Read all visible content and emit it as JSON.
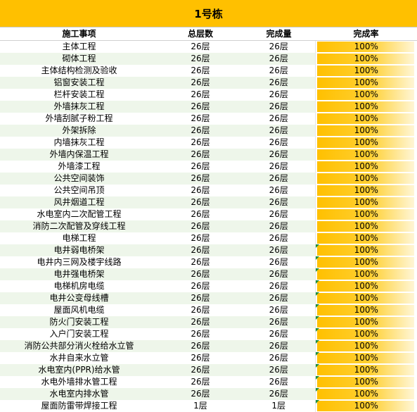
{
  "title": "1号栋",
  "headers": [
    "施工事项",
    "总层数",
    "完成量",
    "完成率"
  ],
  "rows": [
    {
      "item": "主体工程",
      "total": "26层",
      "done": "26层",
      "rate": "100%",
      "flag": false
    },
    {
      "item": "砌体工程",
      "total": "26层",
      "done": "26层",
      "rate": "100%",
      "flag": false
    },
    {
      "item": "主体结构检测及验收",
      "total": "26层",
      "done": "26层",
      "rate": "100%",
      "flag": false
    },
    {
      "item": "铝窗安装工程",
      "total": "26层",
      "done": "26层",
      "rate": "100%",
      "flag": false
    },
    {
      "item": "栏杆安装工程",
      "total": "26层",
      "done": "26层",
      "rate": "100%",
      "flag": false
    },
    {
      "item": "外墙抹灰工程",
      "total": "26层",
      "done": "26层",
      "rate": "100%",
      "flag": false
    },
    {
      "item": "外墙刮腻子粉工程",
      "total": "26层",
      "done": "26层",
      "rate": "100%",
      "flag": false
    },
    {
      "item": "外架拆除",
      "total": "26层",
      "done": "26层",
      "rate": "100%",
      "flag": false
    },
    {
      "item": "内墙抹灰工程",
      "total": "26层",
      "done": "26层",
      "rate": "100%",
      "flag": false
    },
    {
      "item": "外墙内保温工程",
      "total": "26层",
      "done": "26层",
      "rate": "100%",
      "flag": false
    },
    {
      "item": "外墙漆工程",
      "total": "26层",
      "done": "26层",
      "rate": "100%",
      "flag": false
    },
    {
      "item": "公共空间装饰",
      "total": "26层",
      "done": "26层",
      "rate": "100%",
      "flag": false
    },
    {
      "item": "公共空间吊顶",
      "total": "26层",
      "done": "26层",
      "rate": "100%",
      "flag": false
    },
    {
      "item": "风井烟道工程",
      "total": "26层",
      "done": "26层",
      "rate": "100%",
      "flag": false
    },
    {
      "item": "水电室内二次配管工程",
      "total": "26层",
      "done": "26层",
      "rate": "100%",
      "flag": false
    },
    {
      "item": "消防二次配管及穿线工程",
      "total": "26层",
      "done": "26层",
      "rate": "100%",
      "flag": false
    },
    {
      "item": "电梯工程",
      "total": "26层",
      "done": "26层",
      "rate": "100%",
      "flag": false
    },
    {
      "item": "电井弱电桥架",
      "total": "26层",
      "done": "26层",
      "rate": "100%",
      "flag": true
    },
    {
      "item": "电井内三网及楼宇线路",
      "total": "26层",
      "done": "26层",
      "rate": "100%",
      "flag": true
    },
    {
      "item": "电井强电桥架",
      "total": "26层",
      "done": "26层",
      "rate": "100%",
      "flag": true
    },
    {
      "item": "电梯机房电缆",
      "total": "26层",
      "done": "26层",
      "rate": "100%",
      "flag": true
    },
    {
      "item": "电井公变母线槽",
      "total": "26层",
      "done": "26层",
      "rate": "100%",
      "flag": true
    },
    {
      "item": "屋面风机电缆",
      "total": "26层",
      "done": "26层",
      "rate": "100%",
      "flag": true
    },
    {
      "item": "防火门安装工程",
      "total": "26层",
      "done": "26层",
      "rate": "100%",
      "flag": true
    },
    {
      "item": "入户门安装工程",
      "total": "26层",
      "done": "26层",
      "rate": "100%",
      "flag": true
    },
    {
      "item": "消防公共部分消火栓给水立管",
      "total": "26层",
      "done": "26层",
      "rate": "100%",
      "flag": true
    },
    {
      "item": "水井自来水立管",
      "total": "26层",
      "done": "26层",
      "rate": "100%",
      "flag": true
    },
    {
      "item": "水电室内(PPR)给水管",
      "total": "26层",
      "done": "26层",
      "rate": "100%",
      "flag": true
    },
    {
      "item": "水电外墙排水管工程",
      "total": "26层",
      "done": "26层",
      "rate": "100%",
      "flag": true
    },
    {
      "item": "水电室内排水管",
      "total": "26层",
      "done": "26层",
      "rate": "100%",
      "flag": true
    },
    {
      "item": "屋面防雷带焊接工程",
      "total": "1层",
      "done": "1层",
      "rate": "100%",
      "flag": true
    }
  ],
  "colors": {
    "header_fill": "#FFC000",
    "bar_fill": "#FFC000",
    "flag": "#1E8F3E",
    "band": "#EEF6EA"
  }
}
